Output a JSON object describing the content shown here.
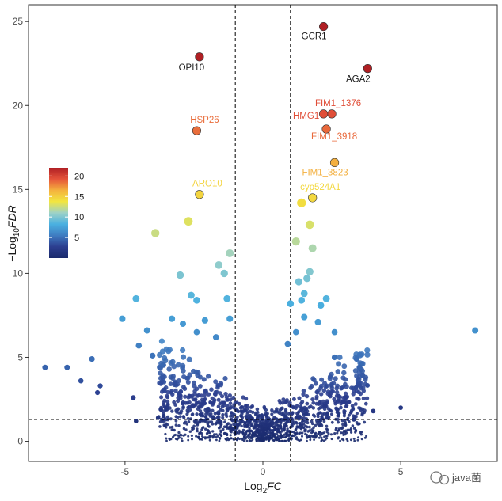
{
  "chart_data": {
    "type": "scatter",
    "title": "",
    "xlabel_base": "Log",
    "xlabel_sub": "2",
    "xlabel_italic": "FC",
    "ylabel_prefix": "−Log",
    "ylabel_sub": "10",
    "ylabel_italic": "FDR",
    "xlim": [
      -8.5,
      8.5
    ],
    "ylim": [
      -1.2,
      26
    ],
    "xticks": [
      -5,
      0,
      5
    ],
    "xtick_labels": [
      "-5",
      "0",
      "5"
    ],
    "yticks": [
      0,
      5,
      10,
      15,
      20,
      25
    ],
    "ytick_labels": [
      "0",
      "5",
      "10",
      "15",
      "20",
      "25"
    ],
    "grid": false,
    "vlines": [
      -1,
      1
    ],
    "hline": 1.3,
    "color_scale": {
      "min": 0,
      "max": 22,
      "ticks": [
        5,
        10,
        15,
        20
      ],
      "tick_labels": [
        "5",
        "10",
        "15",
        "20"
      ],
      "colors": [
        "#1a2a6c",
        "#2c3e8f",
        "#3f7cc1",
        "#4ab0e0",
        "#9ed2c7",
        "#f2e640",
        "#f4b23e",
        "#e5533a",
        "#b01f24"
      ]
    },
    "legend_position": "left-middle",
    "labeled_points": [
      {
        "gene": "GCR1",
        "x": 2.2,
        "y": 24.7
      },
      {
        "gene": "OPI10",
        "x": -2.3,
        "y": 22.9
      },
      {
        "gene": "AGA2",
        "x": 3.8,
        "y": 22.2
      },
      {
        "gene": "FIM1_1376",
        "x": 2.5,
        "y": 19.5
      },
      {
        "gene": "HMG1",
        "x": 2.2,
        "y": 19.5
      },
      {
        "gene": "FIM1_3918",
        "x": 2.3,
        "y": 18.6
      },
      {
        "gene": "HSP26",
        "x": -2.4,
        "y": 18.5
      },
      {
        "gene": "FIM1_3823",
        "x": 2.6,
        "y": 16.6
      },
      {
        "gene": "ARO10",
        "x": -2.3,
        "y": 14.7
      },
      {
        "gene": "cyp524A1",
        "x": 1.8,
        "y": 14.5
      }
    ],
    "other_points": [
      {
        "x": 1.4,
        "y": 14.2
      },
      {
        "x": -2.7,
        "y": 13.1
      },
      {
        "x": 1.7,
        "y": 12.9
      },
      {
        "x": -3.9,
        "y": 12.4
      },
      {
        "x": 1.2,
        "y": 11.9
      },
      {
        "x": 1.8,
        "y": 11.5
      },
      {
        "x": -1.2,
        "y": 11.2
      },
      {
        "x": -1.6,
        "y": 10.5
      },
      {
        "x": -1.4,
        "y": 10.0
      },
      {
        "x": -3.0,
        "y": 9.9
      },
      {
        "x": 1.7,
        "y": 10.1
      },
      {
        "x": 1.6,
        "y": 9.7
      },
      {
        "x": 1.3,
        "y": 9.5
      },
      {
        "x": -2.6,
        "y": 8.7
      },
      {
        "x": -2.4,
        "y": 8.4
      },
      {
        "x": 1.5,
        "y": 8.8
      },
      {
        "x": 1.4,
        "y": 8.4
      },
      {
        "x": 2.3,
        "y": 8.5
      },
      {
        "x": -4.6,
        "y": 8.5
      },
      {
        "x": -1.3,
        "y": 8.5
      },
      {
        "x": 2.1,
        "y": 8.1
      },
      {
        "x": 1.0,
        "y": 8.2
      },
      {
        "x": -5.1,
        "y": 7.3
      },
      {
        "x": -3.3,
        "y": 7.3
      },
      {
        "x": -2.1,
        "y": 7.2
      },
      {
        "x": -1.2,
        "y": 7.3
      },
      {
        "x": 2.0,
        "y": 7.1
      },
      {
        "x": 1.5,
        "y": 7.4
      },
      {
        "x": -2.9,
        "y": 7.0
      },
      {
        "x": 7.7,
        "y": 6.6
      },
      {
        "x": -4.2,
        "y": 6.6
      },
      {
        "x": -2.4,
        "y": 6.5
      },
      {
        "x": 2.6,
        "y": 6.5
      },
      {
        "x": 1.2,
        "y": 6.5
      },
      {
        "x": -1.7,
        "y": 6.2
      },
      {
        "x": -4.5,
        "y": 5.7
      },
      {
        "x": 0.9,
        "y": 5.8
      },
      {
        "x": -4.0,
        "y": 5.1
      },
      {
        "x": -6.2,
        "y": 4.9
      },
      {
        "x": 3.4,
        "y": 4.9
      },
      {
        "x": 2.6,
        "y": 5.0
      },
      {
        "x": -7.9,
        "y": 4.4
      },
      {
        "x": -7.1,
        "y": 4.4
      },
      {
        "x": 3.5,
        "y": 4.4
      },
      {
        "x": -6.6,
        "y": 3.6
      },
      {
        "x": -5.9,
        "y": 3.3
      },
      {
        "x": -6.0,
        "y": 2.9
      },
      {
        "x": -4.7,
        "y": 2.6
      },
      {
        "x": 3.0,
        "y": 2.6
      },
      {
        "x": 5.0,
        "y": 2.0
      },
      {
        "x": -3.7,
        "y": 1.9
      },
      {
        "x": 4.0,
        "y": 1.8
      },
      {
        "x": -4.6,
        "y": 1.2
      },
      {
        "x": 3.3,
        "y": 1.3
      },
      {
        "x": -3.6,
        "y": 1.5
      },
      {
        "x": 2.7,
        "y": 1.9
      },
      {
        "x": -3.8,
        "y": 1.4
      }
    ]
  },
  "watermark": {
    "text": "java菌"
  }
}
